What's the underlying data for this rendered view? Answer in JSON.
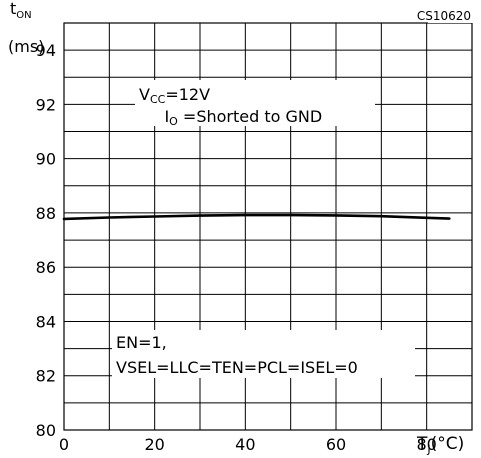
{
  "chart_data": {
    "type": "line",
    "id_label": "CS10620",
    "ylabel_sym": "t",
    "ylabel_sub": "ON",
    "ylabel_unit": "(ms)",
    "xlabel_sym": "T",
    "xlabel_sub": "J",
    "xlabel_unit": "(°C)",
    "xlim": [
      0,
      90
    ],
    "ylim": [
      80,
      95
    ],
    "x_ticks": [
      "0",
      "20",
      "40",
      "60",
      "80"
    ],
    "x_tick_values": [
      0,
      20,
      40,
      60,
      80
    ],
    "y_ticks": [
      "80",
      "82",
      "84",
      "86",
      "88",
      "90",
      "92",
      "94"
    ],
    "y_tick_values": [
      80,
      82,
      84,
      86,
      88,
      90,
      92,
      94
    ],
    "x_grid_step": 10,
    "y_grid_step": 1,
    "grid": true,
    "annotation_top": {
      "vcc_sym": "V",
      "vcc_sub": "CC",
      "vcc_val": "=12V",
      "io_sym": "I",
      "io_sub": "O",
      "io_val": " =Shorted to GND"
    },
    "annotation_bottom": {
      "line1": "EN=1,",
      "line2": "VSEL=LLC=TEN=PCL=ISEL=0"
    },
    "series": [
      {
        "x": [
          0,
          10,
          20,
          30,
          40,
          50,
          60,
          70,
          80,
          85
        ],
        "y": [
          87.78,
          87.83,
          87.87,
          87.9,
          87.92,
          87.92,
          87.91,
          87.88,
          87.82,
          87.79
        ]
      }
    ]
  }
}
